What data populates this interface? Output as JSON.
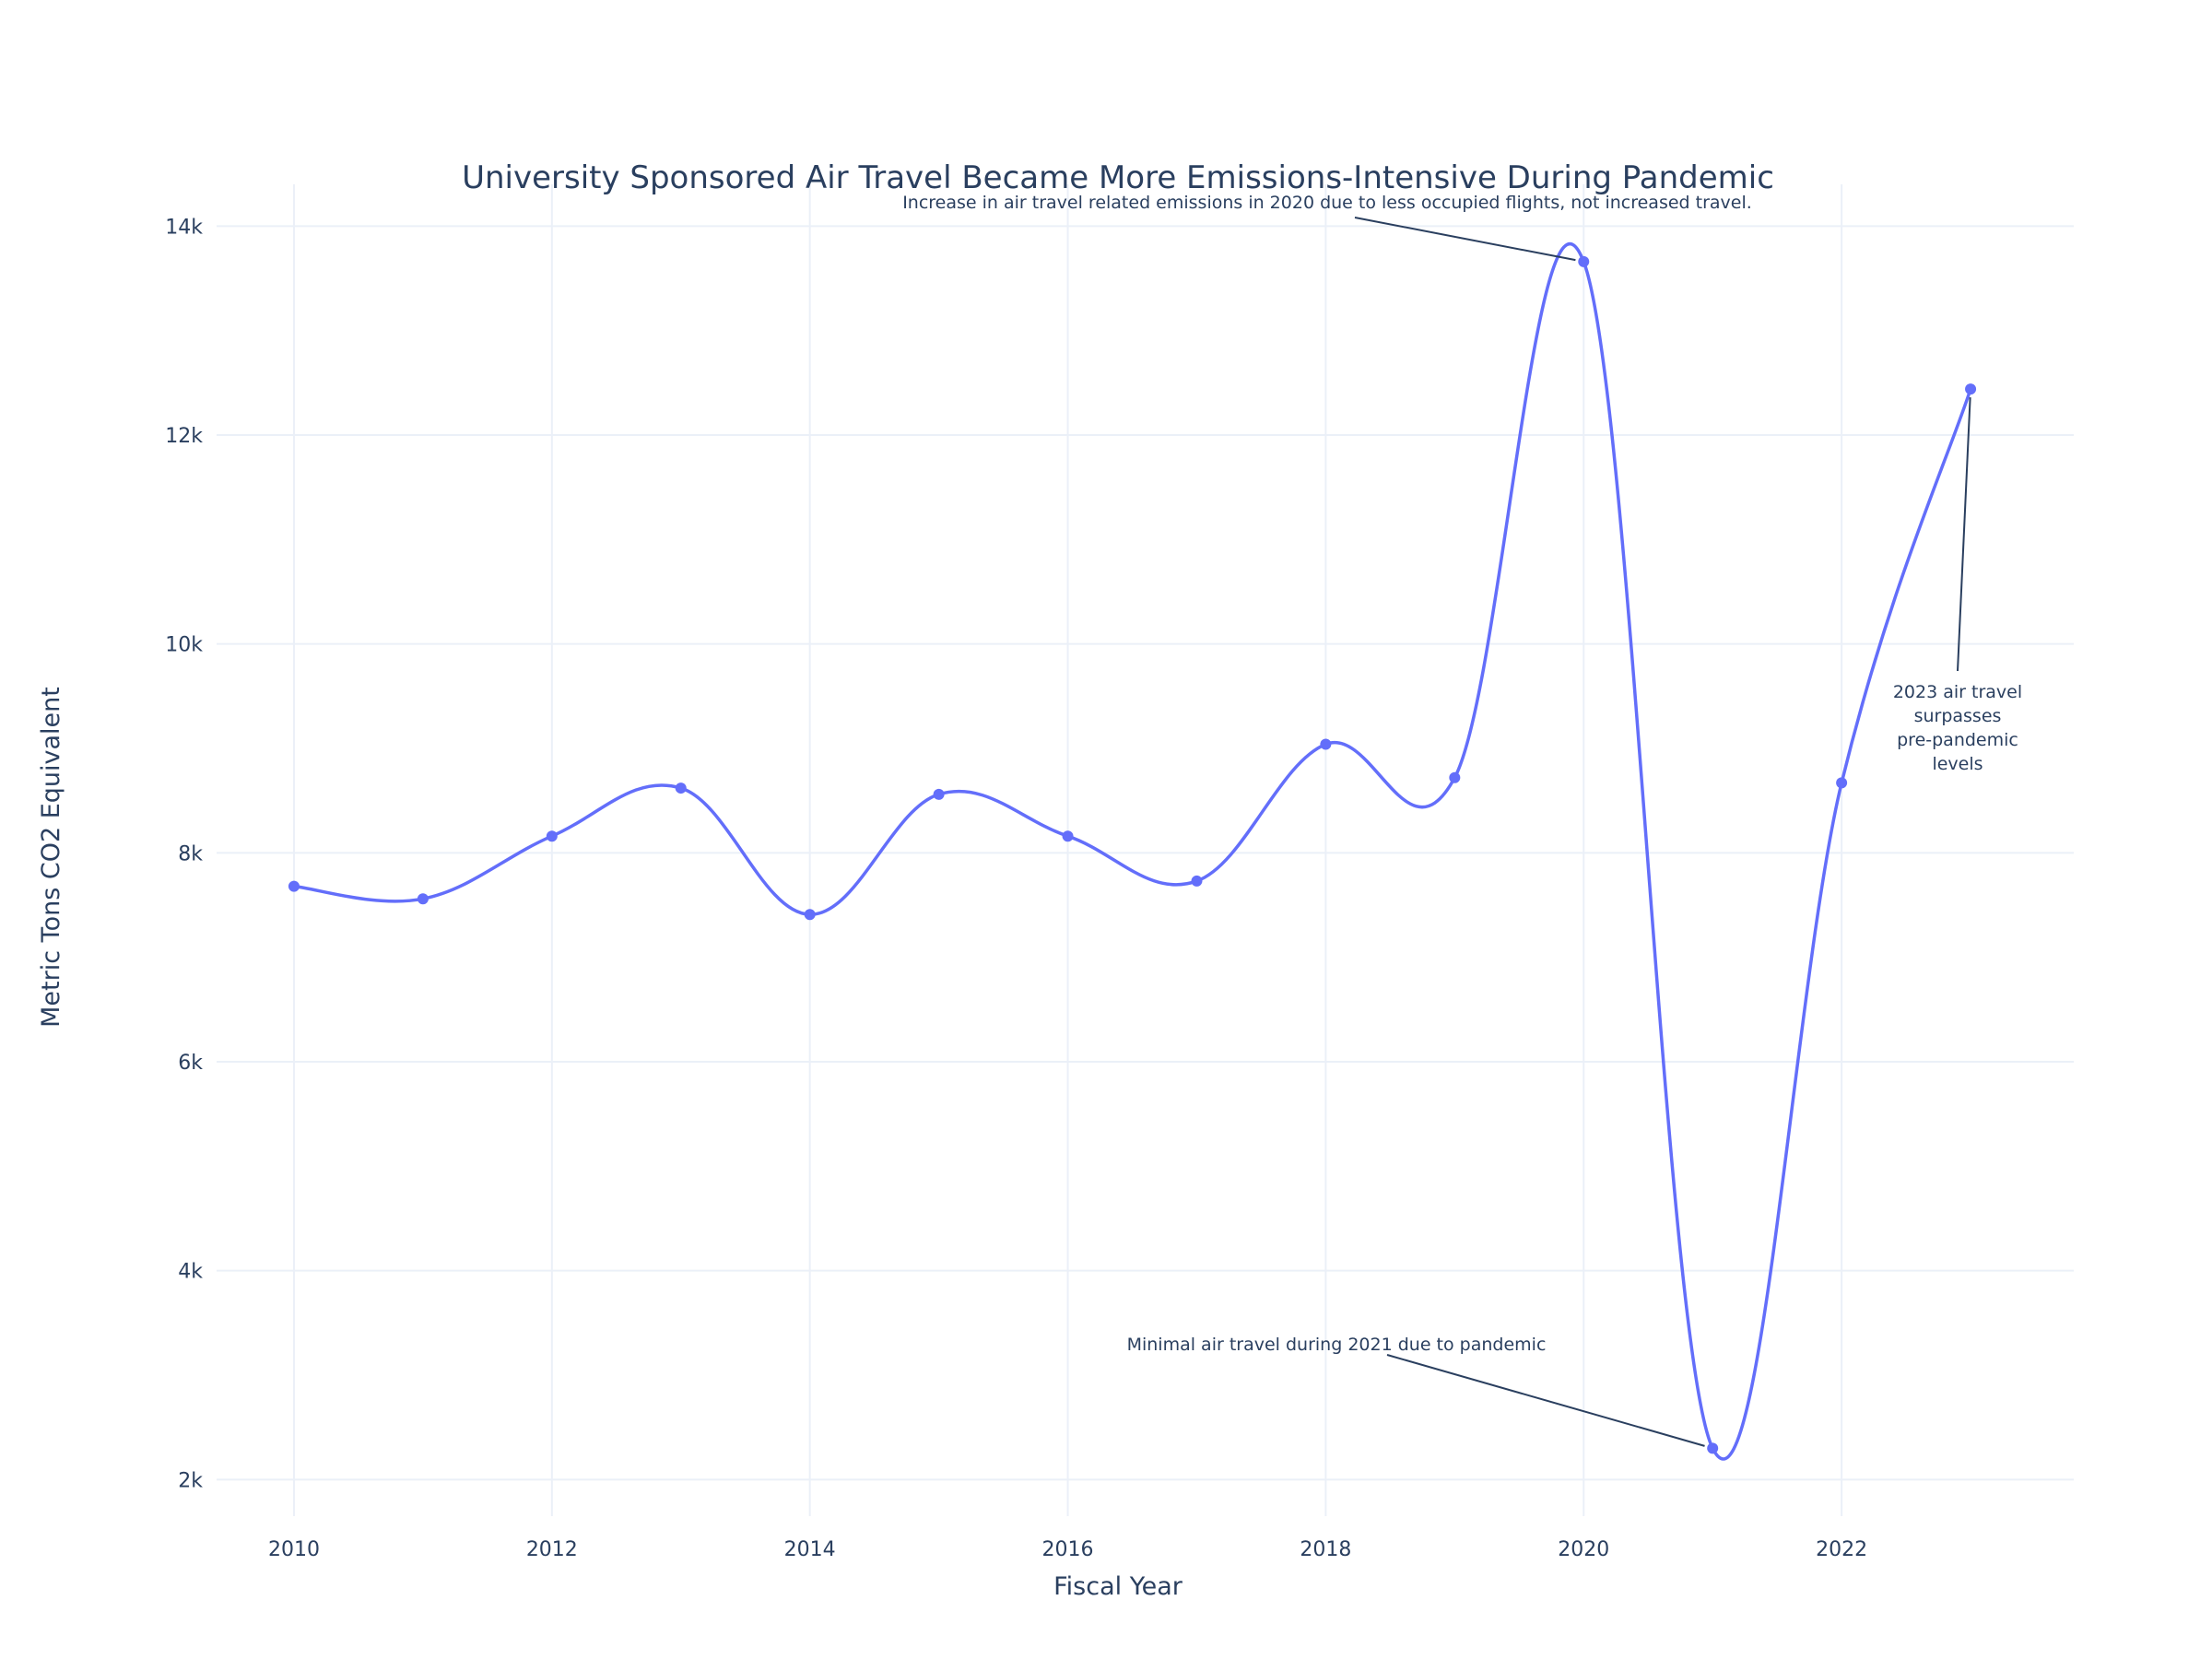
{
  "chart_data": {
    "type": "line",
    "title": "University Sponsored Air Travel Became More Emissions-Intensive During Pandemic",
    "xlabel": "Fiscal Year",
    "ylabel": "Metric Tons CO2 Equivalent",
    "xlim": [
      2009.4,
      2023.8
    ],
    "ylim": [
      1650,
      14400
    ],
    "x_ticks": [
      2010,
      2012,
      2014,
      2016,
      2018,
      2020,
      2022
    ],
    "x_tick_labels": [
      "2010",
      "2012",
      "2014",
      "2016",
      "2018",
      "2020",
      "2022"
    ],
    "y_ticks": [
      2000,
      4000,
      6000,
      8000,
      10000,
      12000,
      14000
    ],
    "y_tick_labels": [
      "2k",
      "4k",
      "6k",
      "8k",
      "10k",
      "12k",
      "14k"
    ],
    "grid": true,
    "line_shape": "spline",
    "series": [
      {
        "color": "#636efa",
        "x": [
          2010,
          2011,
          2012,
          2013,
          2014,
          2015,
          2016,
          2017,
          2018,
          2019,
          2020,
          2021,
          2022,
          2023
        ],
        "y": [
          7680,
          7560,
          8160,
          8620,
          7410,
          8560,
          8160,
          7730,
          9040,
          8720,
          13660,
          2300,
          8670,
          12440
        ]
      }
    ],
    "annotations": [
      {
        "text": "Increase in air travel related emissions in 2020 due to less occupied flights, not increased travel.",
        "x": 2020,
        "y": 13660
      },
      {
        "text": "Minimal air travel during 2021 due to pandemic",
        "x": 2021,
        "y": 2300
      },
      {
        "text": "2023 air travel surpasses pre-pandemic levels",
        "x": 2023,
        "y": 12440
      }
    ]
  }
}
